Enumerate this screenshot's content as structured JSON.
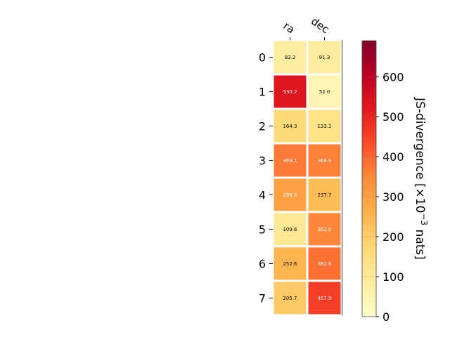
{
  "chart_data": {
    "type": "heatmap",
    "columns": [
      "ra",
      "dec"
    ],
    "rows": [
      "0",
      "1",
      "2",
      "3",
      "4",
      "5",
      "6",
      "7"
    ],
    "values": [
      [
        82.2,
        91.3
      ],
      [
        530.2,
        52.0
      ],
      [
        164.3,
        133.1
      ],
      [
        369.1,
        360.9
      ],
      [
        298.5,
        237.7
      ],
      [
        109.6,
        352.0
      ],
      [
        252.6,
        381.6
      ],
      [
        205.7,
        457.9
      ]
    ],
    "value_labels": [
      [
        "82.2",
        "91.3"
      ],
      [
        "530.2",
        "52.0"
      ],
      [
        "164.3",
        "133.1"
      ],
      [
        "369.1",
        "360.9"
      ],
      [
        "298.5",
        "237.7"
      ],
      [
        "109.6",
        "352.0"
      ],
      [
        "252.6",
        "381.6"
      ],
      [
        "205.7",
        "457.9"
      ]
    ],
    "colorbar": {
      "label": "JS-divergence [×10",
      "label_exponent": "−3",
      "label_suffix": " nats]",
      "vmin": 0,
      "vmax": 690,
      "ticks": [
        "0",
        "100",
        "200",
        "300",
        "400",
        "500",
        "600"
      ],
      "colormap": "YlOrRd"
    },
    "grid": false
  }
}
